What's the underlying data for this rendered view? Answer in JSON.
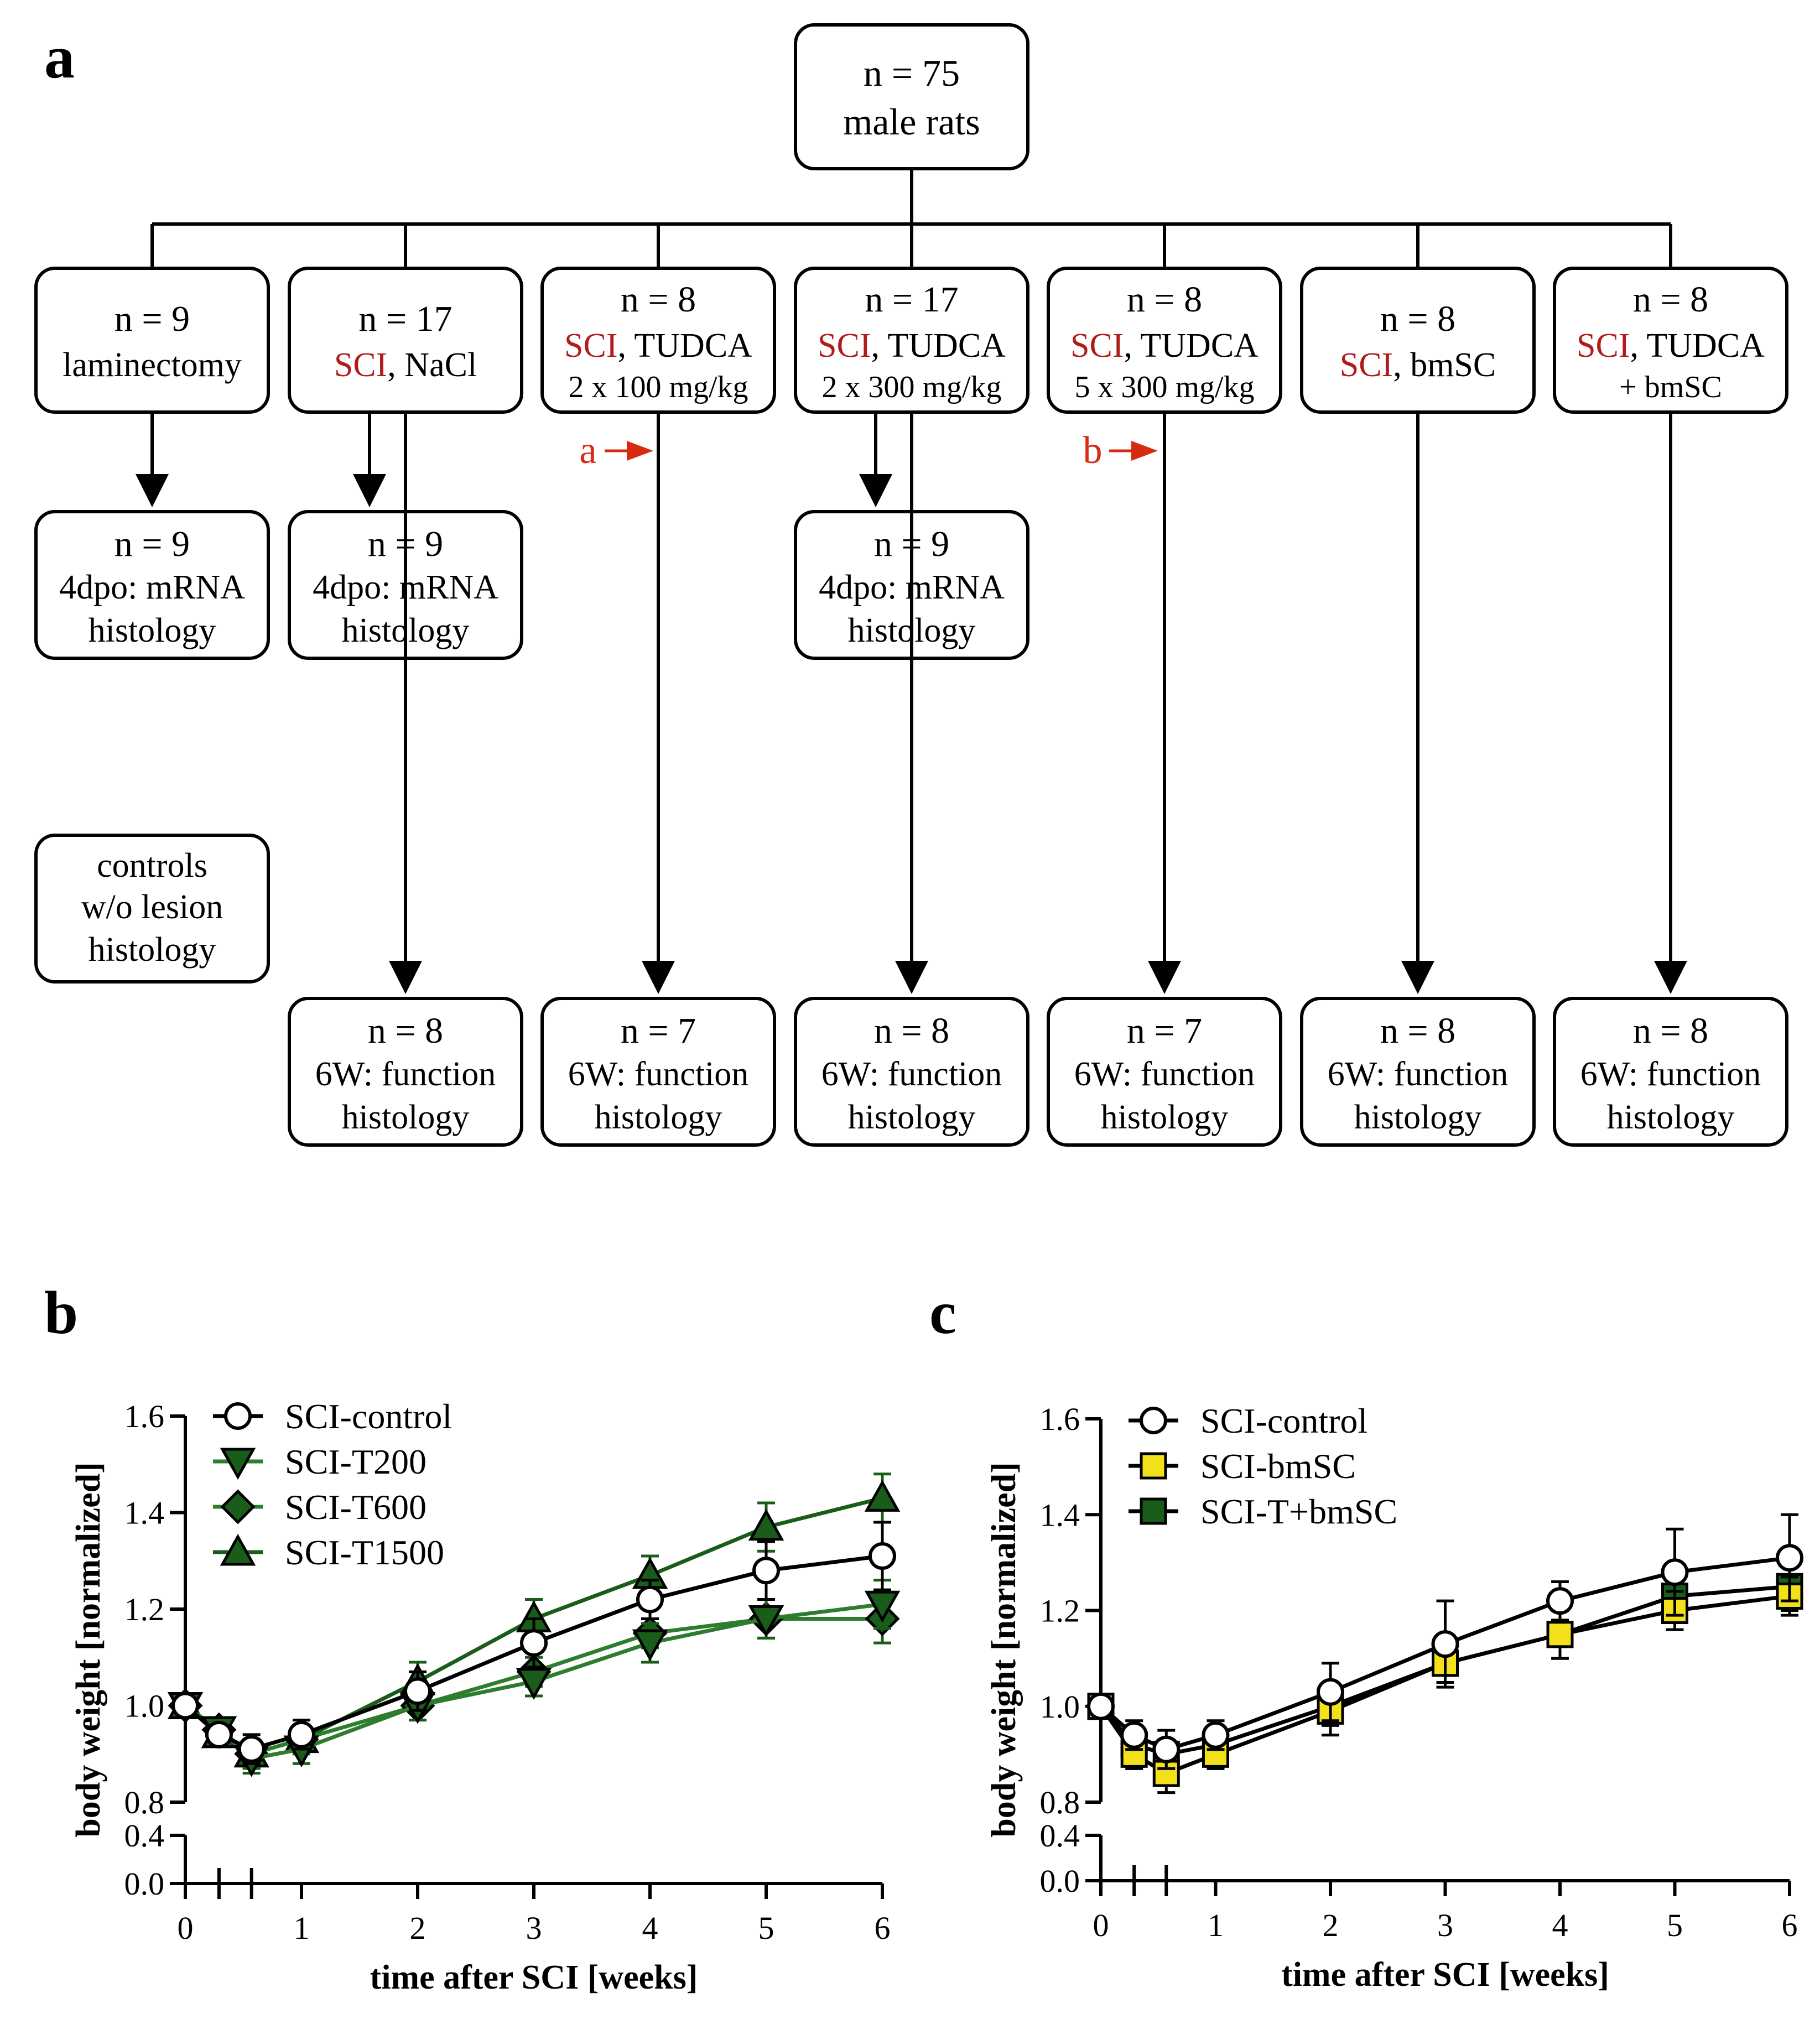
{
  "panel_a": {
    "letter": "a",
    "root": {
      "line1": "n = 75",
      "line2": "male rats"
    },
    "groups": [
      {
        "line1": "n = 9",
        "line2": "laminectomy"
      },
      {
        "line1": "n = 17",
        "sci": "SCI",
        "line2_rest": ", NaCl"
      },
      {
        "line1": "n = 8",
        "sci": "SCI",
        "line2_rest": ", TUDCA",
        "line3": "2 x 100 mg/kg"
      },
      {
        "line1": "n = 17",
        "sci": "SCI",
        "line2_rest": ", TUDCA",
        "line3": "2 x 300 mg/kg"
      },
      {
        "line1": "n = 8",
        "sci": "SCI",
        "line2_rest": ", TUDCA",
        "line3": "5 x 300 mg/kg"
      },
      {
        "line1": "n = 8",
        "sci": "SCI",
        "line2_rest": ", bmSC"
      },
      {
        "line1": "n = 8",
        "sci": "SCI",
        "line2_rest": ", TUDCA",
        "line3": "+ bmSC"
      }
    ],
    "mid": [
      {
        "line1": "n = 9",
        "line2": "4dpo: mRNA",
        "line3": "histology"
      },
      {
        "line1": "n = 9",
        "line2": "4dpo: mRNA",
        "line3": "histology"
      },
      {
        "line1": "n = 9",
        "line2": "4dpo: mRNA",
        "line3": "histology"
      }
    ],
    "controls": {
      "line1": "controls",
      "line2": "w/o lesion",
      "line3": "histology"
    },
    "bottom": [
      {
        "line1": "n = 8",
        "line2": "6W: function",
        "line3": "histology"
      },
      {
        "line1": "n = 7",
        "line2": "6W: function",
        "line3": "histology"
      },
      {
        "line1": "n = 8",
        "line2": "6W: function",
        "line3": "histology"
      },
      {
        "line1": "n = 7",
        "line2": "6W: function",
        "line3": "histology"
      },
      {
        "line1": "n = 8",
        "line2": "6W: function",
        "line3": "histology"
      },
      {
        "line1": "n = 8",
        "line2": "6W: function",
        "line3": "histology"
      }
    ],
    "marker_a": "a",
    "marker_b": "b"
  },
  "colors": {
    "sci_red": "#b01c1c",
    "arrow_red": "#d62a12",
    "dark_green": "#1a5c1a",
    "green_line": "#2e7d2e",
    "yellow": "#f2e11a",
    "black": "#000000"
  },
  "chart_data": [
    {
      "panel": "b",
      "type": "line",
      "xlabel": "time after SCI [weeks]",
      "ylabel": "body weight [normalized]",
      "x": [
        0,
        0.29,
        0.57,
        1,
        2,
        3,
        4,
        5,
        6
      ],
      "x_ticks": [
        "0",
        "1",
        "2",
        "3",
        "4",
        "5",
        "6"
      ],
      "y_ticks_upper": [
        "0.8",
        "1.0",
        "1.2",
        "1.4",
        "1.6"
      ],
      "y_ticks_lower": [
        "0.0",
        "0.4"
      ],
      "ylim_upper": [
        0.8,
        1.6
      ],
      "ylim_lower": [
        0.0,
        0.4
      ],
      "series": [
        {
          "name": "SCI-control",
          "marker": "circle",
          "values": [
            1.0,
            0.94,
            0.91,
            0.94,
            1.03,
            1.13,
            1.22,
            1.28,
            1.31
          ],
          "err": [
            0.01,
            0.02,
            0.03,
            0.03,
            0.04,
            0.05,
            0.04,
            0.06,
            0.07
          ]
        },
        {
          "name": "SCI-T200",
          "marker": "triangle-down",
          "values": [
            1.0,
            0.95,
            0.89,
            0.91,
            1.0,
            1.05,
            1.13,
            1.18,
            1.21
          ],
          "err": [
            0.01,
            0.02,
            0.03,
            0.03,
            0.03,
            0.03,
            0.04,
            0.04,
            0.05
          ]
        },
        {
          "name": "SCI-T600",
          "marker": "diamond",
          "values": [
            1.0,
            0.95,
            0.9,
            0.93,
            1.0,
            1.07,
            1.15,
            1.18,
            1.18
          ],
          "err": [
            0.01,
            0.02,
            0.03,
            0.03,
            0.03,
            0.03,
            0.03,
            0.04,
            0.05
          ]
        },
        {
          "name": "SCI-T1500",
          "marker": "triangle-up",
          "values": [
            1.0,
            0.94,
            0.9,
            0.93,
            1.05,
            1.18,
            1.27,
            1.37,
            1.43
          ],
          "err": [
            0.01,
            0.02,
            0.03,
            0.03,
            0.04,
            0.04,
            0.04,
            0.05,
            0.05
          ]
        }
      ]
    },
    {
      "panel": "c",
      "type": "line",
      "xlabel": "time after SCI [weeks]",
      "ylabel": "body weight [normalized]",
      "x": [
        0,
        0.29,
        0.57,
        1,
        2,
        3,
        4,
        5,
        6
      ],
      "x_ticks": [
        "0",
        "1",
        "2",
        "3",
        "4",
        "5",
        "6"
      ],
      "y_ticks_upper": [
        "0.8",
        "1.0",
        "1.2",
        "1.4",
        "1.6"
      ],
      "y_ticks_lower": [
        "0.0",
        "0.4"
      ],
      "ylim_upper": [
        0.8,
        1.6
      ],
      "ylim_lower": [
        0.0,
        0.4
      ],
      "series": [
        {
          "name": "SCI-control",
          "marker": "circle",
          "values": [
            1.0,
            0.94,
            0.91,
            0.94,
            1.03,
            1.13,
            1.22,
            1.28,
            1.31
          ],
          "err": [
            0.01,
            0.03,
            0.04,
            0.03,
            0.06,
            0.09,
            0.04,
            0.09,
            0.09
          ]
        },
        {
          "name": "SCI-bmSC",
          "marker": "square",
          "values": [
            1.0,
            0.9,
            0.86,
            0.9,
            0.99,
            1.09,
            1.15,
            1.2,
            1.23
          ],
          "err": [
            0.01,
            0.03,
            0.04,
            0.03,
            0.05,
            0.04,
            0.05,
            0.04,
            0.04
          ]
        },
        {
          "name": "SCI-T+bmSC",
          "marker": "square",
          "values": [
            1.0,
            0.92,
            0.9,
            0.92,
            1.0,
            1.09,
            1.15,
            1.23,
            1.25
          ],
          "err": [
            0.01,
            0.03,
            0.03,
            0.03,
            0.04,
            0.04,
            0.05,
            0.05,
            0.05
          ]
        }
      ]
    }
  ]
}
